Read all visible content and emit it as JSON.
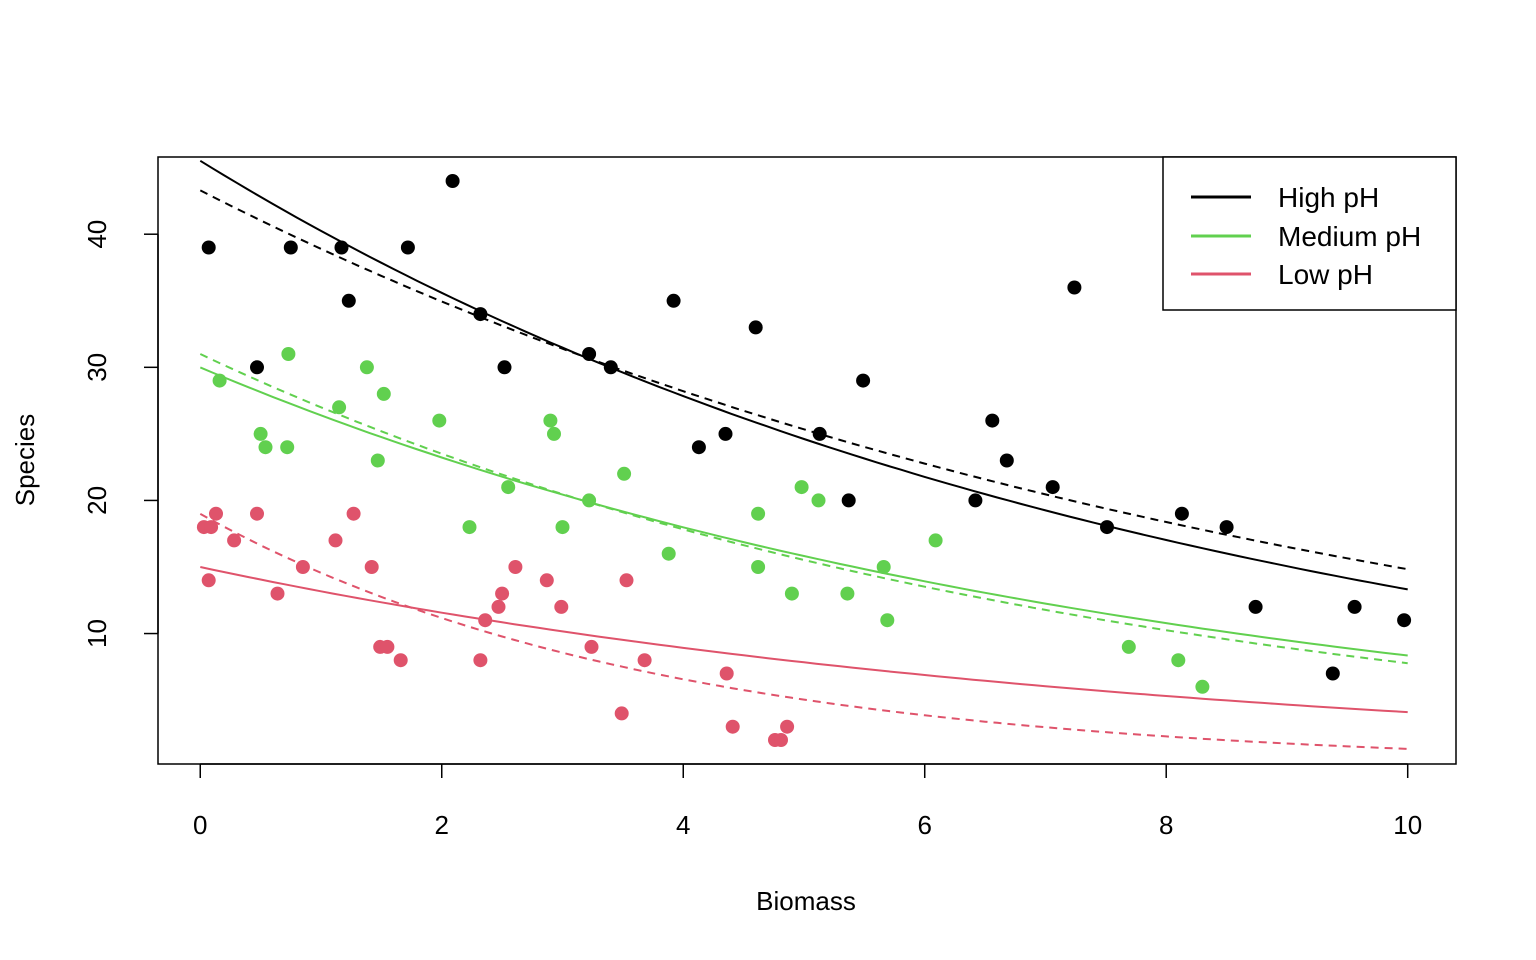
{
  "chart_data": {
    "type": "scatter",
    "title": "",
    "xlabel": "Biomass",
    "ylabel": "Species",
    "xlim": [
      -0.35,
      10.4
    ],
    "ylim": [
      0.2,
      45.8
    ],
    "xticks": [
      0,
      2,
      4,
      6,
      8,
      10
    ],
    "yticks": [
      10,
      20,
      30,
      40
    ],
    "grid": false,
    "legend": {
      "position": "top-right",
      "entries": [
        {
          "label": "High pH",
          "color": "#000000"
        },
        {
          "label": "Medium pH",
          "color": "#61D04F"
        },
        {
          "label": "Low pH",
          "color": "#DF536B"
        }
      ]
    },
    "series": [
      {
        "name": "High pH",
        "color": "#000000",
        "points": [
          [
            0.07,
            39
          ],
          [
            0.47,
            30
          ],
          [
            0.75,
            39
          ],
          [
            1.17,
            39
          ],
          [
            1.23,
            35
          ],
          [
            1.72,
            39
          ],
          [
            2.09,
            44
          ],
          [
            2.32,
            34
          ],
          [
            2.52,
            30
          ],
          [
            3.22,
            31
          ],
          [
            3.4,
            30
          ],
          [
            3.92,
            35
          ],
          [
            4.13,
            24
          ],
          [
            4.35,
            25
          ],
          [
            4.6,
            33
          ],
          [
            5.13,
            25
          ],
          [
            5.37,
            20
          ],
          [
            5.49,
            29
          ],
          [
            6.42,
            20
          ],
          [
            6.56,
            26
          ],
          [
            6.68,
            23
          ],
          [
            7.06,
            21
          ],
          [
            7.24,
            36
          ],
          [
            7.51,
            18
          ],
          [
            8.13,
            19
          ],
          [
            8.5,
            18
          ],
          [
            8.74,
            12
          ],
          [
            9.38,
            7
          ],
          [
            9.56,
            12
          ],
          [
            9.97,
            11
          ]
        ],
        "fit_solid": {
          "a": 3.818,
          "b": -0.1229
        },
        "fit_dashed": {
          "a": 3.768,
          "b": -0.1071
        }
      },
      {
        "name": "Medium pH",
        "color": "#61D04F",
        "points": [
          [
            0.16,
            29
          ],
          [
            0.5,
            25
          ],
          [
            0.54,
            24
          ],
          [
            0.72,
            24
          ],
          [
            0.73,
            31
          ],
          [
            1.15,
            27
          ],
          [
            1.38,
            30
          ],
          [
            1.47,
            23
          ],
          [
            1.52,
            28
          ],
          [
            1.98,
            26
          ],
          [
            2.23,
            18
          ],
          [
            2.55,
            21
          ],
          [
            2.9,
            26
          ],
          [
            2.93,
            25
          ],
          [
            3.0,
            18
          ],
          [
            3.22,
            20
          ],
          [
            3.51,
            22
          ],
          [
            3.88,
            16
          ],
          [
            4.62,
            19
          ],
          [
            4.62,
            15
          ],
          [
            4.9,
            13
          ],
          [
            4.98,
            21
          ],
          [
            5.12,
            20
          ],
          [
            5.36,
            13
          ],
          [
            5.66,
            15
          ],
          [
            5.69,
            11
          ],
          [
            6.09,
            17
          ],
          [
            7.69,
            9
          ],
          [
            8.1,
            8
          ],
          [
            8.3,
            6
          ]
        ],
        "fit_solid": {
          "a": 3.401,
          "b": -0.1279
        },
        "fit_dashed": {
          "a": 3.434,
          "b": -0.1383
        }
      },
      {
        "name": "Low pH",
        "color": "#DF536B",
        "points": [
          [
            0.03,
            18
          ],
          [
            0.07,
            14
          ],
          [
            0.09,
            18
          ],
          [
            0.13,
            19
          ],
          [
            0.28,
            17
          ],
          [
            0.47,
            19
          ],
          [
            0.64,
            13
          ],
          [
            0.85,
            15
          ],
          [
            1.12,
            17
          ],
          [
            1.27,
            19
          ],
          [
            1.42,
            15
          ],
          [
            1.49,
            9
          ],
          [
            1.55,
            9
          ],
          [
            1.66,
            8
          ],
          [
            2.32,
            8
          ],
          [
            2.36,
            11
          ],
          [
            2.47,
            12
          ],
          [
            2.5,
            13
          ],
          [
            2.61,
            15
          ],
          [
            2.87,
            14
          ],
          [
            2.99,
            12
          ],
          [
            3.24,
            9
          ],
          [
            3.49,
            4
          ],
          [
            3.53,
            14
          ],
          [
            3.68,
            8
          ],
          [
            4.36,
            7
          ],
          [
            4.41,
            3
          ],
          [
            4.76,
            2
          ],
          [
            4.81,
            2
          ],
          [
            4.86,
            3
          ]
        ],
        "fit_solid": {
          "a": 2.708,
          "b": -0.1298
        },
        "fit_dashed": {
          "a": 2.944,
          "b": -0.2655
        }
      }
    ]
  }
}
